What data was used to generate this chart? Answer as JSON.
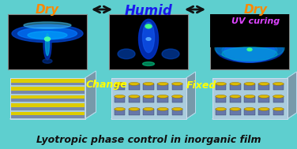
{
  "bg_color": "#5ecfcf",
  "title_text": "Lyotropic phase control in inorganic film",
  "title_color": "#111111",
  "humid_label": "Humid",
  "humid_color": "#1a1aee",
  "dry_left_label": "Dry",
  "dry_right_label": "Dry",
  "dry_color": "#ff8800",
  "uv_label": "UV curing",
  "uv_color": "#dd44ff",
  "change_label": "Change",
  "change_color": "#ffff00",
  "fixed_label": "Fixed",
  "fixed_color": "#ffff00",
  "arrow_color": "#111111",
  "saxs_bg": "#000000",
  "layer_yellow": "#ddcc00",
  "layer_gray": "#7788aa",
  "cylinder_color": "#6677aa",
  "cylinder_dot": "#ddbb00"
}
